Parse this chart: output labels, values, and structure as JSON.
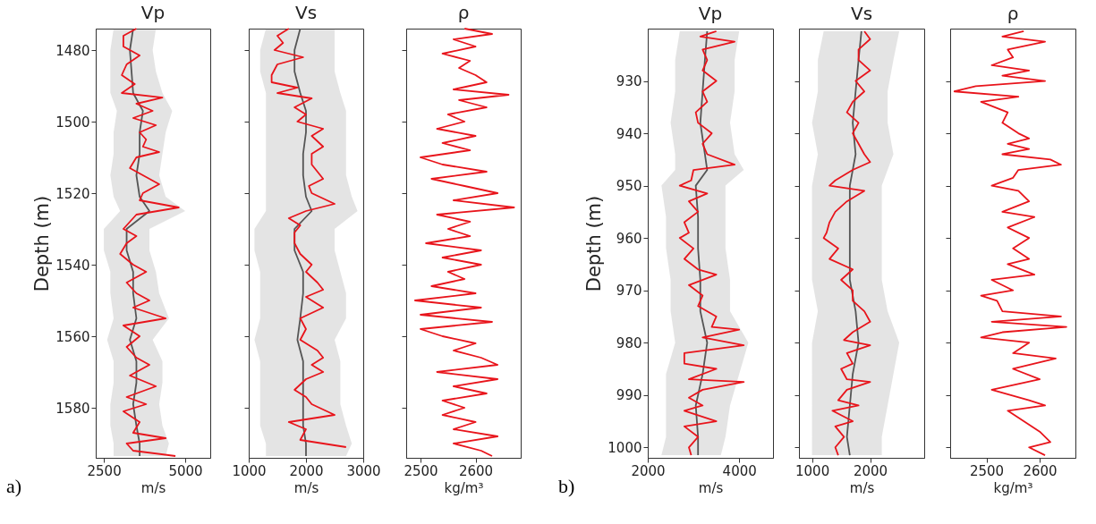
{
  "chart_data": [
    {
      "type": "line",
      "orientation": "horizontal",
      "title": "Vp",
      "xlabel": "m/s",
      "ylabel": "Depth (m)",
      "xlim": [
        2250,
        5770
      ],
      "xticks": [
        2500,
        5000
      ],
      "ylim": [
        1594,
        1474
      ],
      "yticks": [
        1480,
        1500,
        1520,
        1540,
        1560,
        1580
      ],
      "annotations": [
        "a)"
      ],
      "series": [
        {
          "color": "#555555",
          "x": [
            1474,
            1480,
            1486,
            1492,
            1497,
            1503,
            1509,
            1515,
            1521,
            1525,
            1530,
            1536,
            1542,
            1548,
            1555,
            1561,
            1567,
            1573,
            1579,
            1585,
            1590,
            1593.5
          ],
          "values": [
            3400,
            3300,
            3350,
            3400,
            3700,
            3600,
            3600,
            3500,
            3600,
            3900,
            3200,
            3200,
            3400,
            3400,
            3500,
            3300,
            3500,
            3500,
            3400,
            3500,
            3600,
            3600
          ],
          "lower": [
            2800,
            2700,
            2700,
            2700,
            2900,
            2800,
            2800,
            2700,
            2800,
            3000,
            2500,
            2500,
            2700,
            2700,
            2800,
            2600,
            2800,
            2800,
            2700,
            2700,
            2800,
            2800
          ],
          "upper": [
            4100,
            4000,
            4100,
            4300,
            4600,
            4400,
            4300,
            4200,
            4400,
            5000,
            3900,
            3900,
            4100,
            4200,
            4500,
            4000,
            4300,
            4300,
            4200,
            4300,
            4500,
            4400
          ]
        },
        {
          "color": "#e8141b",
          "x": [
            1474,
            1476,
            1479,
            1481.5,
            1484,
            1487,
            1489.5,
            1492,
            1493.3,
            1495,
            1497,
            1499,
            1501,
            1503,
            1505,
            1507,
            1508.5,
            1510,
            1513,
            1515,
            1517.5,
            1520,
            1522,
            1524,
            1526,
            1528,
            1530,
            1532,
            1534,
            1537,
            1540,
            1542,
            1545,
            1548,
            1550,
            1552,
            1555,
            1557,
            1560,
            1563,
            1566,
            1568,
            1571,
            1574,
            1577,
            1579,
            1581,
            1584,
            1587,
            1588.5,
            1590,
            1592,
            1593.5
          ],
          "values": [
            3500,
            3100,
            3100,
            3600,
            3200,
            3050,
            3450,
            3050,
            4300,
            3500,
            4000,
            3400,
            4100,
            3600,
            3800,
            3700,
            4200,
            3500,
            3300,
            3700,
            4200,
            3700,
            3600,
            4800,
            3500,
            3300,
            3100,
            3500,
            3200,
            3000,
            3400,
            3800,
            3200,
            3500,
            3900,
            3400,
            4400,
            3100,
            3600,
            3200,
            3500,
            3900,
            3300,
            4100,
            3200,
            3800,
            3100,
            3600,
            3400,
            4400,
            3200,
            3400,
            4700
          ]
        }
      ]
    },
    {
      "type": "line",
      "orientation": "horizontal",
      "title": "Vs",
      "xlabel": "m/s",
      "xlim": [
        1000,
        3000
      ],
      "xticks": [
        1000,
        2000,
        3000
      ],
      "ylim": [
        1594,
        1474
      ],
      "yticks": [
        1480,
        1500,
        1520,
        1540,
        1560,
        1580
      ],
      "tick_labels": "x",
      "series": [
        {
          "color": "#555555",
          "x": [
            1474,
            1480,
            1486,
            1492,
            1497,
            1503,
            1509,
            1515,
            1521,
            1525,
            1530,
            1536,
            1542,
            1548,
            1555,
            1561,
            1567,
            1573,
            1579,
            1585,
            1590,
            1593.5
          ],
          "values": [
            1900,
            1800,
            1800,
            1900,
            2000,
            2000,
            1950,
            1950,
            2000,
            2100,
            1800,
            1800,
            1950,
            1950,
            1900,
            1850,
            1950,
            1950,
            1950,
            1950,
            2000,
            2000
          ],
          "lower": [
            1300,
            1200,
            1200,
            1300,
            1300,
            1300,
            1300,
            1300,
            1300,
            1300,
            1100,
            1100,
            1200,
            1200,
            1200,
            1100,
            1200,
            1200,
            1200,
            1200,
            1300,
            1300
          ],
          "upper": [
            2500,
            2500,
            2500,
            2600,
            2700,
            2700,
            2700,
            2700,
            2800,
            2900,
            2500,
            2500,
            2600,
            2700,
            2700,
            2500,
            2600,
            2600,
            2600,
            2700,
            2800,
            2700
          ]
        },
        {
          "color": "#e8141b",
          "x": [
            1474,
            1476,
            1478,
            1480,
            1482,
            1484,
            1487,
            1489,
            1490.5,
            1492,
            1493.5,
            1496,
            1498,
            1500,
            1502,
            1504,
            1507,
            1509,
            1512,
            1514,
            1516,
            1518,
            1520,
            1523,
            1525,
            1527,
            1529,
            1531,
            1534,
            1537,
            1540,
            1542,
            1545,
            1547,
            1549,
            1552,
            1555,
            1558,
            1561,
            1564,
            1566,
            1568,
            1570,
            1572,
            1575,
            1577,
            1579,
            1582,
            1584,
            1586,
            1589,
            1591
          ],
          "values": [
            1700,
            1500,
            1600,
            1450,
            1950,
            1500,
            1400,
            1400,
            1850,
            1500,
            2100,
            1800,
            2000,
            1850,
            2300,
            2100,
            2300,
            2100,
            2100,
            2200,
            2300,
            2050,
            2100,
            2500,
            2000,
            1700,
            1900,
            1800,
            1800,
            1900,
            2100,
            2000,
            2200,
            2300,
            2000,
            2300,
            1900,
            2000,
            1900,
            2200,
            2300,
            2100,
            2300,
            2000,
            1800,
            2000,
            2100,
            2500,
            1700,
            2000,
            1900,
            2700
          ]
        }
      ]
    },
    {
      "type": "line",
      "orientation": "horizontal",
      "title": "ρ",
      "xlabel": "kg/m³",
      "xlim": [
        2474,
        2682
      ],
      "xticks": [
        2500,
        2600
      ],
      "ylim": [
        1594,
        1474
      ],
      "yticks": [
        1480,
        1500,
        1520,
        1540,
        1560,
        1580
      ],
      "tick_labels": "x",
      "series": [
        {
          "color": "#e8141b",
          "x": [
            1474,
            1475.5,
            1477,
            1479,
            1481,
            1483,
            1485,
            1487,
            1489,
            1491,
            1492.5,
            1494,
            1496,
            1498,
            1500,
            1502,
            1504,
            1506,
            1508,
            1510,
            1512,
            1514,
            1516,
            1518,
            1520,
            1522,
            1524,
            1526,
            1528,
            1530,
            1532,
            1534,
            1536,
            1538,
            1540,
            1542,
            1544,
            1546,
            1548,
            1550,
            1552,
            1554,
            1556,
            1558,
            1560,
            1562,
            1564,
            1566,
            1568,
            1570,
            1572,
            1574,
            1576,
            1578,
            1580,
            1582,
            1584,
            1586,
            1588,
            1590,
            1592,
            1593.5
          ],
          "values": [
            2580,
            2630,
            2560,
            2600,
            2540,
            2590,
            2570,
            2600,
            2620,
            2560,
            2660,
            2570,
            2620,
            2550,
            2580,
            2530,
            2600,
            2540,
            2590,
            2500,
            2540,
            2620,
            2520,
            2580,
            2640,
            2560,
            2670,
            2530,
            2590,
            2550,
            2590,
            2510,
            2610,
            2540,
            2610,
            2550,
            2580,
            2520,
            2600,
            2490,
            2610,
            2500,
            2630,
            2500,
            2540,
            2600,
            2560,
            2610,
            2640,
            2530,
            2640,
            2560,
            2620,
            2540,
            2580,
            2540,
            2600,
            2560,
            2640,
            2560,
            2610,
            2630
          ]
        }
      ]
    },
    {
      "type": "line",
      "orientation": "horizontal",
      "title": "Vp",
      "xlabel": "m/s",
      "ylabel": "Depth (m)",
      "xlim": [
        2000,
        4740
      ],
      "xticks": [
        2000,
        4000
      ],
      "ylim": [
        1002,
        920
      ],
      "yticks": [
        930,
        940,
        950,
        960,
        970,
        980,
        990,
        1000
      ],
      "annotations": [
        "b)"
      ],
      "series": [
        {
          "color": "#555555",
          "x": [
            920.5,
            926,
            932,
            938,
            944,
            947,
            950,
            956,
            962,
            968,
            974,
            980,
            986,
            992,
            998,
            1001.5
          ],
          "values": [
            3300,
            3250,
            3200,
            3150,
            3250,
            3300,
            3050,
            3100,
            3100,
            3150,
            3150,
            3300,
            3200,
            3050,
            3100,
            3100
          ],
          "lower": [
            2700,
            2600,
            2600,
            2500,
            2600,
            2600,
            2300,
            2400,
            2400,
            2500,
            2500,
            2600,
            2400,
            2400,
            2400,
            2300
          ],
          "upper": [
            4000,
            3900,
            3900,
            3800,
            3900,
            4100,
            3700,
            3700,
            3700,
            3800,
            3800,
            4200,
            4000,
            3800,
            3700,
            3600
          ]
        },
        {
          "color": "#e8141b",
          "x": [
            920.5,
            921.5,
            922.5,
            924,
            926,
            928,
            930,
            932,
            934,
            936,
            938,
            940,
            942,
            944,
            946,
            947,
            949,
            950,
            951.5,
            953,
            955,
            957,
            959,
            960,
            962,
            964,
            966,
            967,
            969,
            971,
            973,
            975,
            977,
            977.5,
            979,
            980.5,
            982,
            984,
            985,
            987,
            987.5,
            989,
            990.5,
            992,
            993,
            995,
            996,
            998,
            1000,
            1001.5
          ],
          "values": [
            3500,
            3150,
            3900,
            3200,
            3300,
            3200,
            3500,
            3200,
            3300,
            3050,
            3100,
            3400,
            3200,
            3300,
            3900,
            3000,
            2950,
            2700,
            3300,
            2900,
            3100,
            2800,
            2900,
            2700,
            3000,
            2800,
            3100,
            3500,
            2900,
            3200,
            3100,
            3500,
            3400,
            4000,
            3200,
            4100,
            2800,
            2800,
            3500,
            2900,
            4100,
            3200,
            2900,
            3200,
            2800,
            3500,
            2800,
            3100,
            2900,
            2950
          ]
        }
      ]
    },
    {
      "type": "line",
      "orientation": "horizontal",
      "title": "Vs",
      "xlabel": "m/s",
      "xlim": [
        775,
        2930
      ],
      "xticks": [
        1000,
        2000
      ],
      "ylim": [
        1002,
        920
      ],
      "yticks": [
        930,
        940,
        950,
        960,
        970,
        980,
        990,
        1000
      ],
      "tick_labels": "x",
      "series": [
        {
          "color": "#555555",
          "x": [
            920.5,
            926,
            932,
            938,
            944,
            950,
            956,
            962,
            968,
            974,
            980,
            986,
            992,
            998,
            1001.5
          ],
          "values": [
            1850,
            1800,
            1750,
            1700,
            1750,
            1650,
            1650,
            1650,
            1650,
            1750,
            1800,
            1700,
            1650,
            1600,
            1650
          ],
          "lower": [
            1200,
            1100,
            1100,
            1000,
            1100,
            1000,
            1000,
            1000,
            1000,
            1100,
            1000,
            1000,
            1000,
            1000,
            1000
          ],
          "upper": [
            2500,
            2400,
            2300,
            2300,
            2400,
            2200,
            2200,
            2200,
            2200,
            2300,
            2500,
            2400,
            2300,
            2200,
            2200
          ]
        },
        {
          "color": "#e8141b",
          "x": [
            920.5,
            922,
            924,
            926,
            928,
            930,
            932,
            934,
            936,
            938,
            940,
            942,
            944,
            945.5,
            947,
            949,
            950,
            951,
            953,
            955,
            957,
            959,
            960,
            962,
            964,
            966,
            968,
            970,
            972,
            974,
            976,
            978,
            979.5,
            980.5,
            982,
            984,
            985,
            987,
            987.5,
            989,
            991,
            992,
            993,
            995,
            996,
            998,
            1000,
            1001.5
          ],
          "values": [
            1900,
            2000,
            1800,
            1800,
            2000,
            1750,
            1900,
            1700,
            1600,
            1800,
            1700,
            1800,
            1900,
            2000,
            1700,
            1400,
            1300,
            1900,
            1600,
            1400,
            1300,
            1250,
            1200,
            1450,
            1300,
            1700,
            1500,
            1700,
            1700,
            1900,
            2000,
            1700,
            1550,
            2000,
            1600,
            1700,
            1500,
            1600,
            2000,
            1600,
            1450,
            1800,
            1350,
            1700,
            1400,
            1550,
            1400,
            1450
          ]
        }
      ]
    },
    {
      "type": "line",
      "orientation": "horizontal",
      "title": "ρ",
      "xlabel": "kg/m³",
      "xlim": [
        2432,
        2667
      ],
      "xticks": [
        2500,
        2600
      ],
      "ylim": [
        1002,
        920
      ],
      "yticks": [
        930,
        940,
        950,
        960,
        970,
        980,
        990,
        1000
      ],
      "tick_labels": "x",
      "series": [
        {
          "color": "#e8141b",
          "x": [
            920.5,
            921.5,
            922.5,
            924,
            925.5,
            927,
            928,
            929,
            930,
            931,
            932,
            933,
            934,
            936,
            938,
            940,
            941,
            942,
            943,
            944,
            945,
            946,
            947,
            948.5,
            950,
            951,
            953,
            955,
            956,
            958,
            960,
            962,
            964,
            965,
            967,
            968,
            970,
            971,
            972,
            974,
            975,
            976,
            977,
            978,
            979,
            980,
            982,
            983,
            985,
            987,
            989,
            991,
            992,
            993,
            995,
            997,
            999,
            1000,
            1001.5
          ],
          "values": [
            2570,
            2530,
            2610,
            2540,
            2550,
            2510,
            2580,
            2530,
            2610,
            2480,
            2440,
            2560,
            2490,
            2540,
            2530,
            2560,
            2580,
            2540,
            2580,
            2530,
            2620,
            2640,
            2560,
            2550,
            2510,
            2560,
            2580,
            2530,
            2590,
            2540,
            2580,
            2550,
            2580,
            2540,
            2590,
            2510,
            2550,
            2490,
            2520,
            2530,
            2640,
            2510,
            2650,
            2530,
            2490,
            2580,
            2550,
            2630,
            2550,
            2600,
            2510,
            2580,
            2610,
            2540,
            2570,
            2600,
            2620,
            2580,
            2610
          ]
        }
      ]
    }
  ]
}
